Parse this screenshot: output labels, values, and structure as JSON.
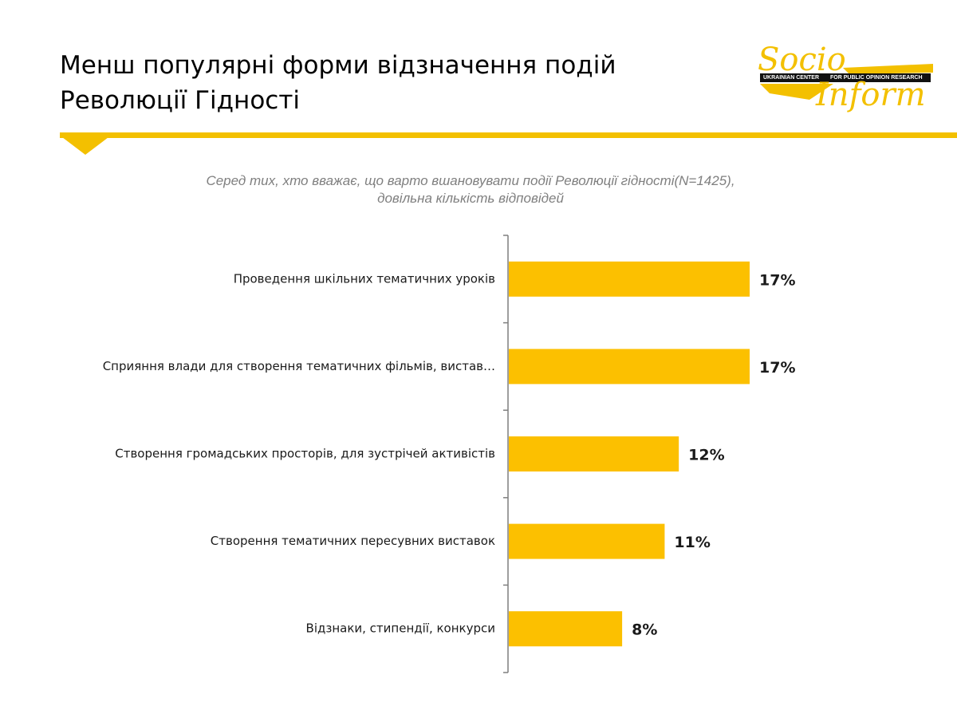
{
  "title_lines": [
    "Менш популярні форми відзначення подій",
    "Революції Гідності"
  ],
  "subtitle_lines": [
    "Серед тих, хто вважає, що варто вшановувати події  Революції гідності(N=1425),",
    "довільна кількість відповідей"
  ],
  "logo": {
    "word_top": "Socio",
    "word_bottom": "Inform",
    "band_left": "UKRAINIAN CENTER",
    "band_right": "FOR PUBLIC OPINION RESEARCH"
  },
  "colors": {
    "accent": "#f3c000",
    "bar": "#fcc000",
    "text": "#1a1a1a",
    "subtitle": "#7f7f7f",
    "axis": "#7f7f7f"
  },
  "chart_data": {
    "type": "bar",
    "orientation": "horizontal",
    "categories": [
      "Проведення шкільних тематичних уроків",
      "Сприяння влади для створення тематичних фільмів, вистав…",
      "Створення громадських просторів, для зустрічей активістів",
      "Створення тематичних пересувних виставок",
      "Відзнаки, стипендії, конкурси"
    ],
    "values": [
      17,
      17,
      12,
      11,
      8
    ],
    "value_labels": [
      "17%",
      "17%",
      "12%",
      "11%",
      "8%"
    ],
    "unit": "%",
    "xlim": [
      0,
      20
    ],
    "grid": false,
    "legend": "none"
  }
}
